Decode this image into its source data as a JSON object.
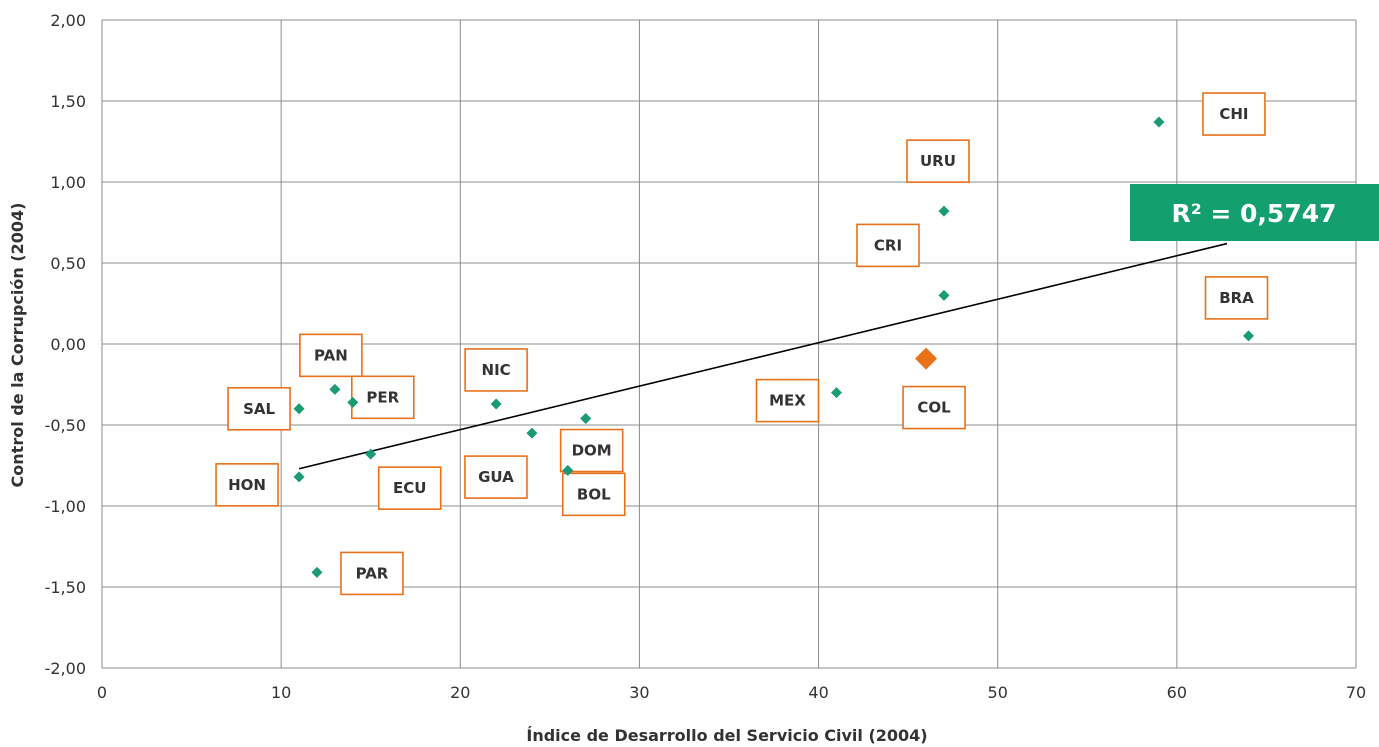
{
  "chart_data": {
    "type": "scatter",
    "xlabel": "Índice de Desarrollo del Servicio Civil (2004)",
    "ylabel": "Control de la Corrupción (2004)",
    "xlim": [
      0,
      70
    ],
    "ylim": [
      -2.0,
      2.0
    ],
    "x_ticks": [
      0,
      10,
      20,
      30,
      40,
      50,
      60,
      70
    ],
    "x_tick_labels": [
      "0",
      "10",
      "20",
      "30",
      "40",
      "50",
      "60",
      "70"
    ],
    "y_ticks": [
      2.0,
      1.5,
      1.0,
      0.5,
      0.0,
      -0.5,
      -1.0,
      -1.5,
      -2.0
    ],
    "y_tick_labels": [
      "2,00",
      "1,50",
      "1,00",
      "0,50",
      "0,00",
      "-0,50",
      "-1,00",
      "-1,50",
      "-2,00"
    ],
    "grid": true,
    "points": [
      {
        "label": "CHI",
        "x": 59,
        "y": 1.37
      },
      {
        "label": "URU",
        "x": 47,
        "y": 0.82
      },
      {
        "label": "CRI",
        "x": 47,
        "y": 0.3
      },
      {
        "label": "BRA",
        "x": 64,
        "y": 0.05
      },
      {
        "label": "COL",
        "x": 46,
        "y": -0.09,
        "highlight": true
      },
      {
        "label": "MEX",
        "x": 41,
        "y": -0.3
      },
      {
        "label": "DOM",
        "x": 27,
        "y": -0.46
      },
      {
        "label": "NIC",
        "x": 22,
        "y": -0.37
      },
      {
        "label": "GUA",
        "x": 24,
        "y": -0.55
      },
      {
        "label": "BOL",
        "x": 26,
        "y": -0.78
      },
      {
        "label": "PAN",
        "x": 13,
        "y": -0.28
      },
      {
        "label": "PER",
        "x": 14,
        "y": -0.36
      },
      {
        "label": "SAL",
        "x": 11,
        "y": -0.4
      },
      {
        "label": "ECU",
        "x": 15,
        "y": -0.68
      },
      {
        "label": "HON",
        "x": 11,
        "y": -0.82
      },
      {
        "label": "PAR",
        "x": 12,
        "y": -1.41
      }
    ],
    "trendline": {
      "x_start": 11,
      "y_start": -0.77,
      "x_end": 62.8,
      "y_end": 0.62
    },
    "r_squared_label": "R² = 0,5747",
    "colors": {
      "point": "#1a9b76",
      "highlight": "#e8711a",
      "label_border": "#e8711a",
      "r2_box": "#14a06e",
      "grid": "#8c8c8c",
      "trendline": "#000000"
    }
  }
}
